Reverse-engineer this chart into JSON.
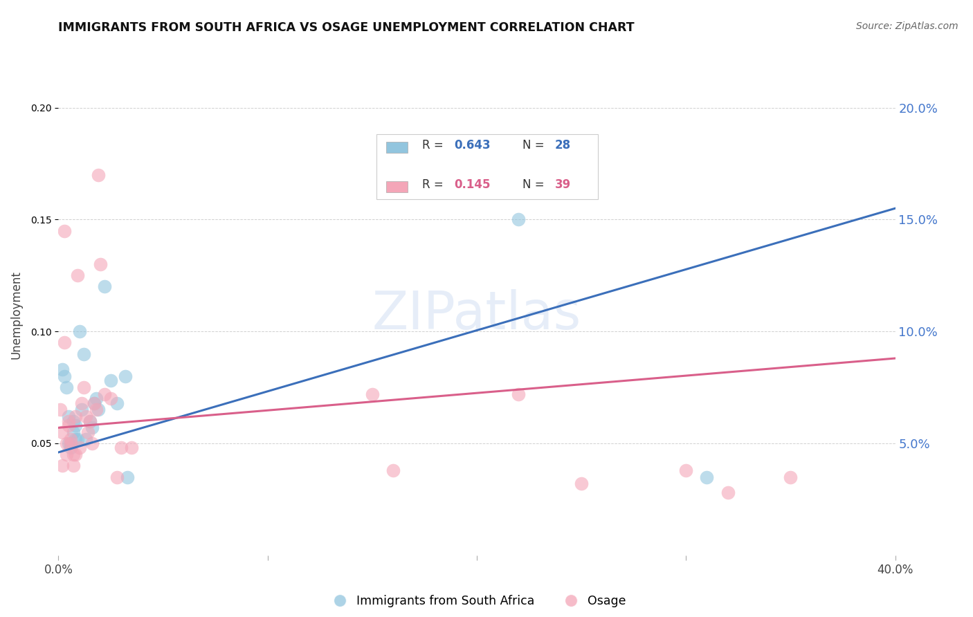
{
  "title": "IMMIGRANTS FROM SOUTH AFRICA VS OSAGE UNEMPLOYMENT CORRELATION CHART",
  "source": "Source: ZipAtlas.com",
  "ylabel": "Unemployment",
  "xlim": [
    0.0,
    0.4
  ],
  "ylim": [
    0.0,
    0.215
  ],
  "blue_r": "0.643",
  "blue_n": "28",
  "pink_r": "0.145",
  "pink_n": "39",
  "blue_color": "#92c5de",
  "pink_color": "#f4a6b8",
  "blue_line_color": "#3b6fba",
  "pink_line_color": "#d95f8a",
  "right_tick_color": "#4477cc",
  "blue_scatter": [
    [
      0.002,
      0.083
    ],
    [
      0.003,
      0.08
    ],
    [
      0.004,
      0.075
    ],
    [
      0.005,
      0.062
    ],
    [
      0.005,
      0.05
    ],
    [
      0.006,
      0.048
    ],
    [
      0.006,
      0.05
    ],
    [
      0.007,
      0.055
    ],
    [
      0.007,
      0.06
    ],
    [
      0.008,
      0.052
    ],
    [
      0.008,
      0.058
    ],
    [
      0.009,
      0.052
    ],
    [
      0.01,
      0.1
    ],
    [
      0.011,
      0.065
    ],
    [
      0.012,
      0.09
    ],
    [
      0.013,
      0.052
    ],
    [
      0.015,
      0.06
    ],
    [
      0.016,
      0.057
    ],
    [
      0.017,
      0.068
    ],
    [
      0.018,
      0.07
    ],
    [
      0.019,
      0.065
    ],
    [
      0.022,
      0.12
    ],
    [
      0.025,
      0.078
    ],
    [
      0.028,
      0.068
    ],
    [
      0.032,
      0.08
    ],
    [
      0.033,
      0.035
    ],
    [
      0.22,
      0.15
    ],
    [
      0.31,
      0.035
    ]
  ],
  "pink_scatter": [
    [
      0.001,
      0.065
    ],
    [
      0.002,
      0.04
    ],
    [
      0.002,
      0.055
    ],
    [
      0.003,
      0.095
    ],
    [
      0.003,
      0.145
    ],
    [
      0.004,
      0.05
    ],
    [
      0.004,
      0.045
    ],
    [
      0.005,
      0.058
    ],
    [
      0.005,
      0.06
    ],
    [
      0.006,
      0.05
    ],
    [
      0.006,
      0.052
    ],
    [
      0.007,
      0.04
    ],
    [
      0.007,
      0.045
    ],
    [
      0.008,
      0.045
    ],
    [
      0.008,
      0.062
    ],
    [
      0.009,
      0.125
    ],
    [
      0.01,
      0.048
    ],
    [
      0.011,
      0.068
    ],
    [
      0.012,
      0.075
    ],
    [
      0.013,
      0.062
    ],
    [
      0.014,
      0.055
    ],
    [
      0.015,
      0.06
    ],
    [
      0.016,
      0.05
    ],
    [
      0.017,
      0.068
    ],
    [
      0.018,
      0.065
    ],
    [
      0.019,
      0.17
    ],
    [
      0.02,
      0.13
    ],
    [
      0.022,
      0.072
    ],
    [
      0.025,
      0.07
    ],
    [
      0.028,
      0.035
    ],
    [
      0.03,
      0.048
    ],
    [
      0.035,
      0.048
    ],
    [
      0.15,
      0.072
    ],
    [
      0.16,
      0.038
    ],
    [
      0.22,
      0.072
    ],
    [
      0.25,
      0.032
    ],
    [
      0.3,
      0.038
    ],
    [
      0.32,
      0.028
    ],
    [
      0.35,
      0.035
    ]
  ],
  "blue_trendline": [
    [
      0.0,
      0.046
    ],
    [
      0.4,
      0.155
    ]
  ],
  "pink_trendline": [
    [
      0.0,
      0.057
    ],
    [
      0.4,
      0.088
    ]
  ],
  "watermark": "ZIPatlas",
  "grid_color": "#d0d0d0",
  "background_color": "#ffffff"
}
